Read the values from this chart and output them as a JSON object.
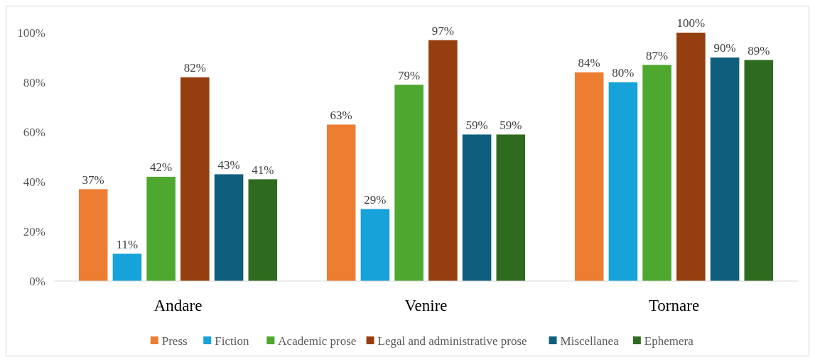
{
  "chart_data": {
    "type": "bar",
    "categories": [
      "Andare",
      "Venire",
      "Tornare"
    ],
    "series": [
      {
        "name": "Press",
        "color": "#ed7d31",
        "values": [
          37,
          63,
          84
        ],
        "value_labels": [
          "37%",
          "63%",
          "84%"
        ]
      },
      {
        "name": "Fiction",
        "color": "#17a2da",
        "values": [
          11,
          29,
          80
        ],
        "value_labels": [
          "11%",
          "29%",
          "80%"
        ]
      },
      {
        "name": "Academic prose",
        "color": "#4ea72e",
        "values": [
          42,
          79,
          87
        ],
        "value_labels": [
          "42%",
          "79%",
          "87%"
        ]
      },
      {
        "name": "Legal and administrative prose",
        "color": "#953f10",
        "values": [
          82,
          97,
          100
        ],
        "value_labels": [
          "82%",
          "97%",
          "100%"
        ]
      },
      {
        "name": "Miscellanea",
        "color": "#0f5e7e",
        "values": [
          43,
          59,
          90
        ],
        "value_labels": [
          "43%",
          "59%",
          "90%"
        ]
      },
      {
        "name": "Ephemera",
        "color": "#2e6b1e",
        "values": [
          41,
          59,
          89
        ],
        "value_labels": [
          "41%",
          "59%",
          "89%"
        ]
      }
    ],
    "ylim": [
      0,
      100
    ],
    "yticks": [
      {
        "value": 0,
        "label": "0%"
      },
      {
        "value": 20,
        "label": "20%"
      },
      {
        "value": 40,
        "label": "40%"
      },
      {
        "value": 60,
        "label": "60%"
      },
      {
        "value": 80,
        "label": "80%"
      },
      {
        "value": 100,
        "label": "100%"
      }
    ],
    "grid": false,
    "legend": "bottom"
  }
}
